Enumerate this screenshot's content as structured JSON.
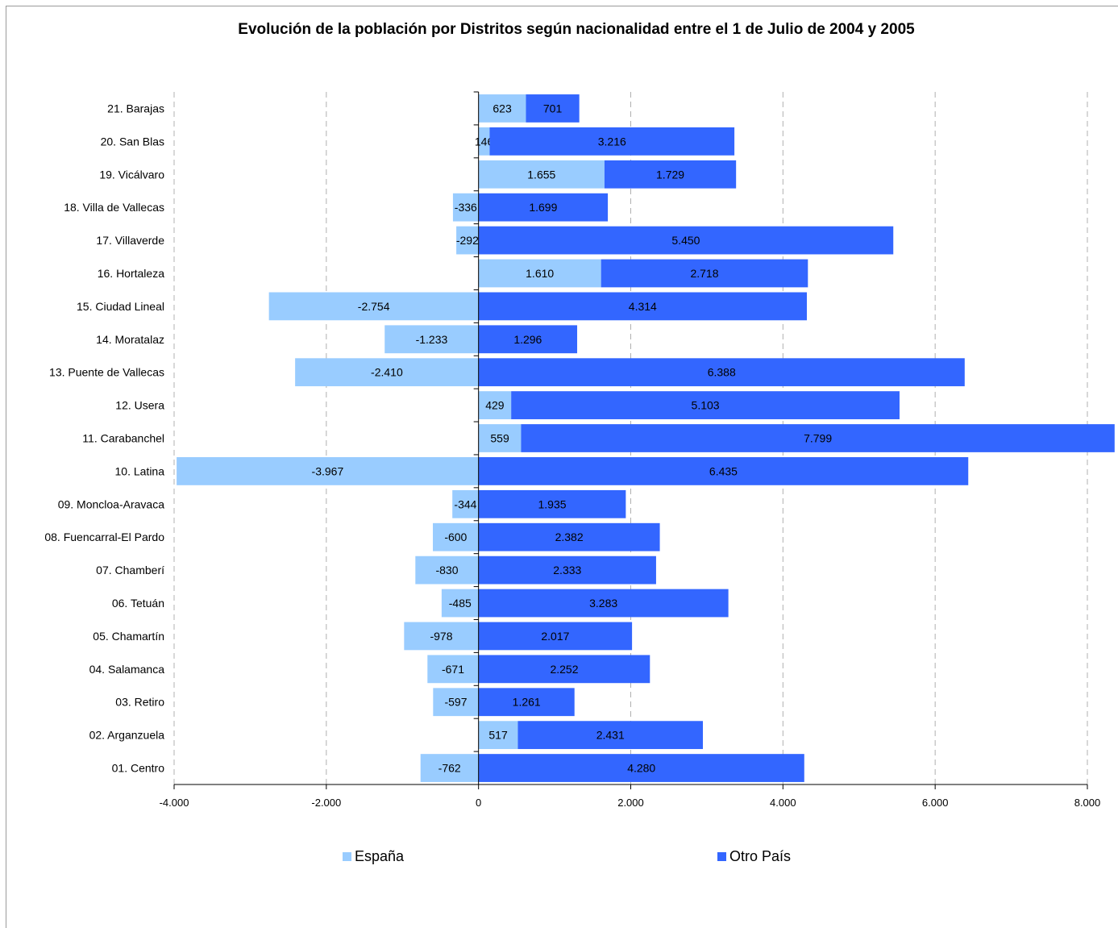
{
  "chart_data": {
    "type": "bar",
    "orientation": "horizontal",
    "stacked": true,
    "title": "Evolución de la población por Distritos según nacionalidad entre el 1 de Julio de 2004 y 2005",
    "categories": [
      "21. Barajas",
      "20. San Blas",
      "19. Vicálvaro",
      "18. Villa de Vallecas",
      "17. Villaverde",
      "16. Hortaleza",
      "15. Ciudad Lineal",
      "14. Moratalaz",
      "13.  Puente de Vallecas",
      "12. Usera",
      "11. Carabanchel",
      "10. Latina",
      "09. Moncloa-Aravaca",
      "08. Fuencarral-El Pardo",
      "07. Chamberí",
      "06. Tetuán",
      "05. Chamartín",
      "04. Salamanca",
      "03. Retiro",
      "02. Arganzuela",
      "01. Centro"
    ],
    "series": [
      {
        "name": "España",
        "color": "#99ccff",
        "values": [
          623,
          146,
          1655,
          -336,
          -292,
          1610,
          -2754,
          -1233,
          -2410,
          429,
          559,
          -3967,
          -344,
          -600,
          -830,
          -485,
          -978,
          -671,
          -597,
          517,
          -762
        ],
        "labels": [
          "623",
          "146",
          "1.655",
          "-336",
          "-292",
          "1.610",
          "-2.754",
          "-1.233",
          "-2.410",
          "429",
          "559",
          "-3.967",
          "-344",
          "-600",
          "-830",
          "-485",
          "-978",
          "-671",
          "-597",
          "517",
          "-762"
        ]
      },
      {
        "name": "Otro País",
        "color": "#3366ff",
        "values": [
          701,
          3216,
          1729,
          1699,
          5450,
          2718,
          4314,
          1296,
          6388,
          5103,
          7799,
          6435,
          1935,
          2382,
          2333,
          3283,
          2017,
          2252,
          1261,
          2431,
          4280
        ],
        "labels": [
          "701",
          "3.216",
          "1.729",
          "1.699",
          "5.450",
          "2.718",
          "4.314",
          "1.296",
          "6.388",
          "5.103",
          "7.799",
          "6.435",
          "1.935",
          "2.382",
          "2.333",
          "3.283",
          "2.017",
          "2.252",
          "1.261",
          "2.431",
          "4.280"
        ]
      }
    ],
    "xlim": [
      -4000,
      8000
    ],
    "xticks": [
      -4000,
      -2000,
      0,
      2000,
      4000,
      6000,
      8000
    ],
    "xtick_labels": [
      "-4.000",
      "-2.000",
      "0",
      "2.000",
      "4.000",
      "6.000",
      "8.000"
    ],
    "grid": "vertical dashed",
    "legend_position": "bottom"
  }
}
